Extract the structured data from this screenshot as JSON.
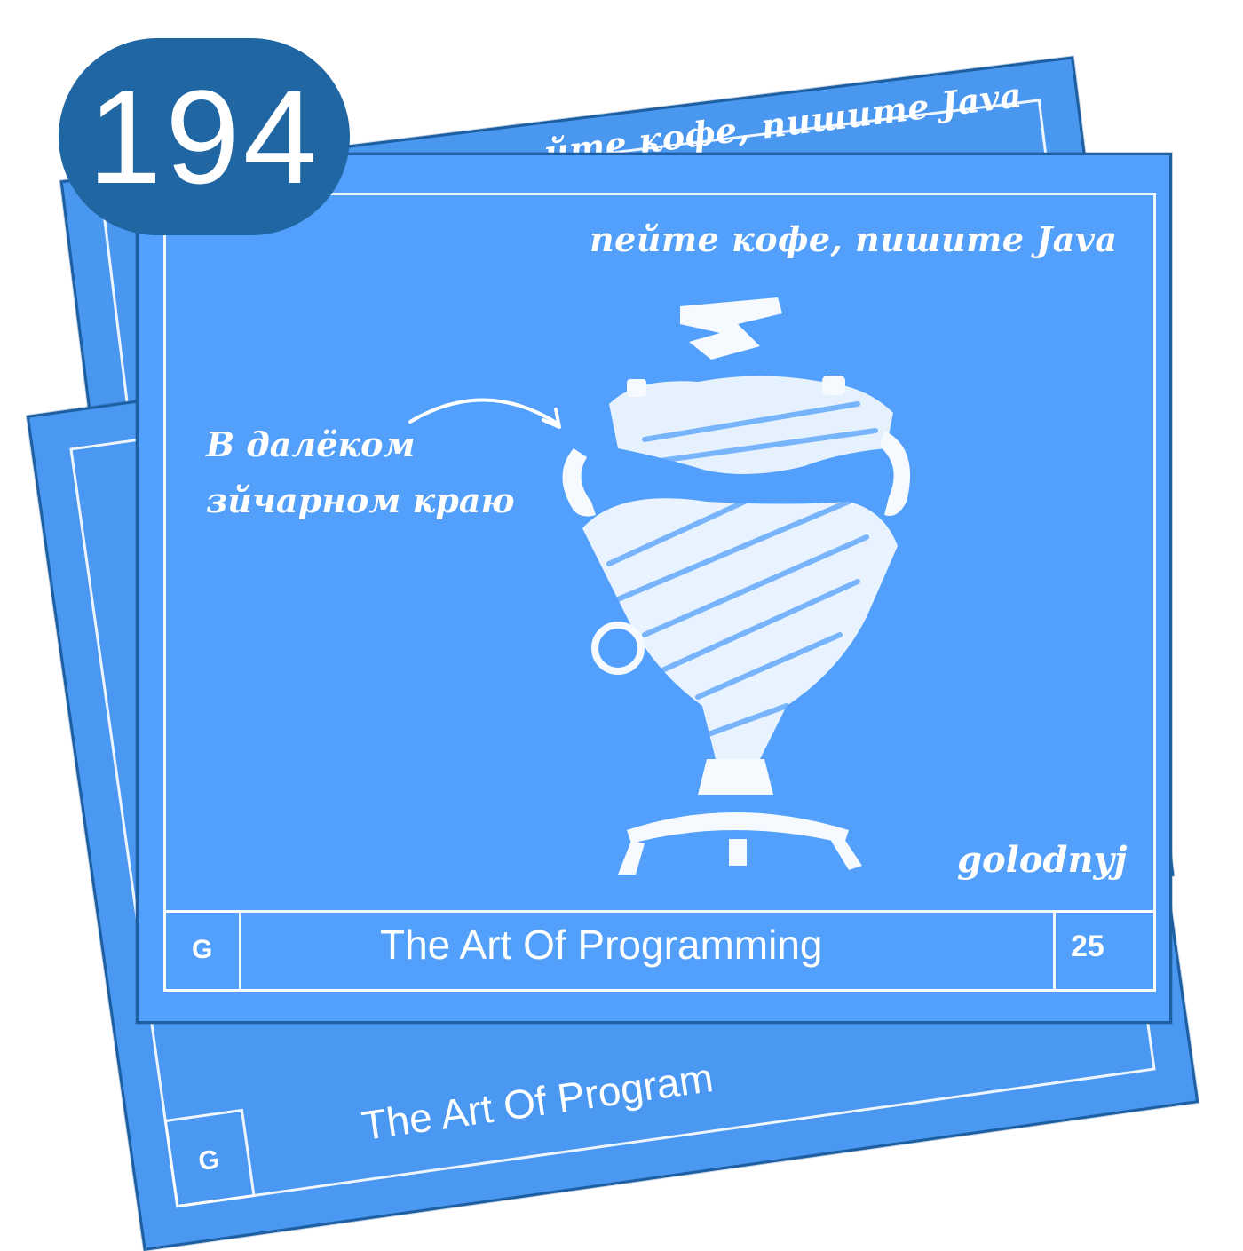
{
  "episode": {
    "number": "194"
  },
  "front_card": {
    "motto": "пейте кофе, пишите Java",
    "caption_line1": "В далёком",
    "caption_line2": "зйчарном краю",
    "author": "golodnyj",
    "footer_left": "G",
    "footer_title": "The Art Of Programming",
    "footer_right": "25",
    "illustration": "samovar"
  },
  "back_cards": {
    "motto_partial": "…йте кофе, пишите Java",
    "footer_left": "G",
    "footer_title": "The Art Of Program"
  },
  "colors": {
    "card_fill": "#52a0fb",
    "card_border": "#1d5fa1",
    "chalk": "#ffffff",
    "badge": "#1f66a3"
  }
}
